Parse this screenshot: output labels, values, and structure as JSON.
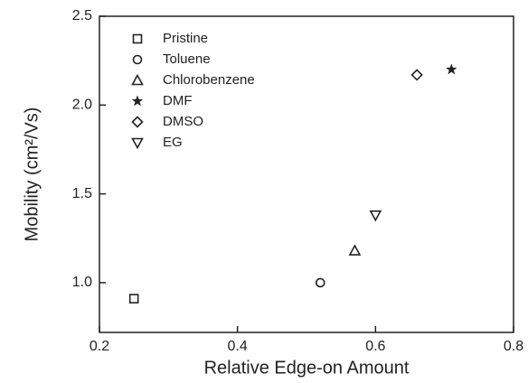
{
  "chart_data": {
    "type": "scatter",
    "x_label": "Relative Edge-on Amount",
    "y_label": "Mobility (cm²/Vs)",
    "xlim": [
      0.2,
      0.8
    ],
    "xticks": [
      0.2,
      0.4,
      0.6,
      0.8
    ],
    "ylim": [
      0.72,
      2.5
    ],
    "yticks": [
      {
        "value": 1,
        "label": "1.0"
      },
      1.5,
      {
        "value": 2,
        "label": "2.0"
      },
      2.5
    ],
    "legend": "upper left",
    "series": [
      {
        "name": "Pristine",
        "marker": "square",
        "color": "#222222",
        "x": [
          0.25
        ],
        "values": [
          0.91
        ]
      },
      {
        "name": "Toluene",
        "marker": "circle",
        "color": "#222222",
        "x": [
          0.52
        ],
        "values": [
          1.0
        ]
      },
      {
        "name": "Chlorobenzene",
        "marker": "triangle-up",
        "color": "#222222",
        "x": [
          0.57
        ],
        "values": [
          1.18
        ]
      },
      {
        "name": "DMF",
        "marker": "star",
        "color": "#222222",
        "x": [
          0.71
        ],
        "values": [
          2.2
        ]
      },
      {
        "name": "DMSO",
        "marker": "diamond",
        "color": "#222222",
        "x": [
          0.66
        ],
        "values": [
          2.17
        ]
      },
      {
        "name": "EG",
        "marker": "triangle-down",
        "color": "#222222",
        "x": [
          0.6
        ],
        "values": [
          1.38
        ]
      }
    ]
  }
}
